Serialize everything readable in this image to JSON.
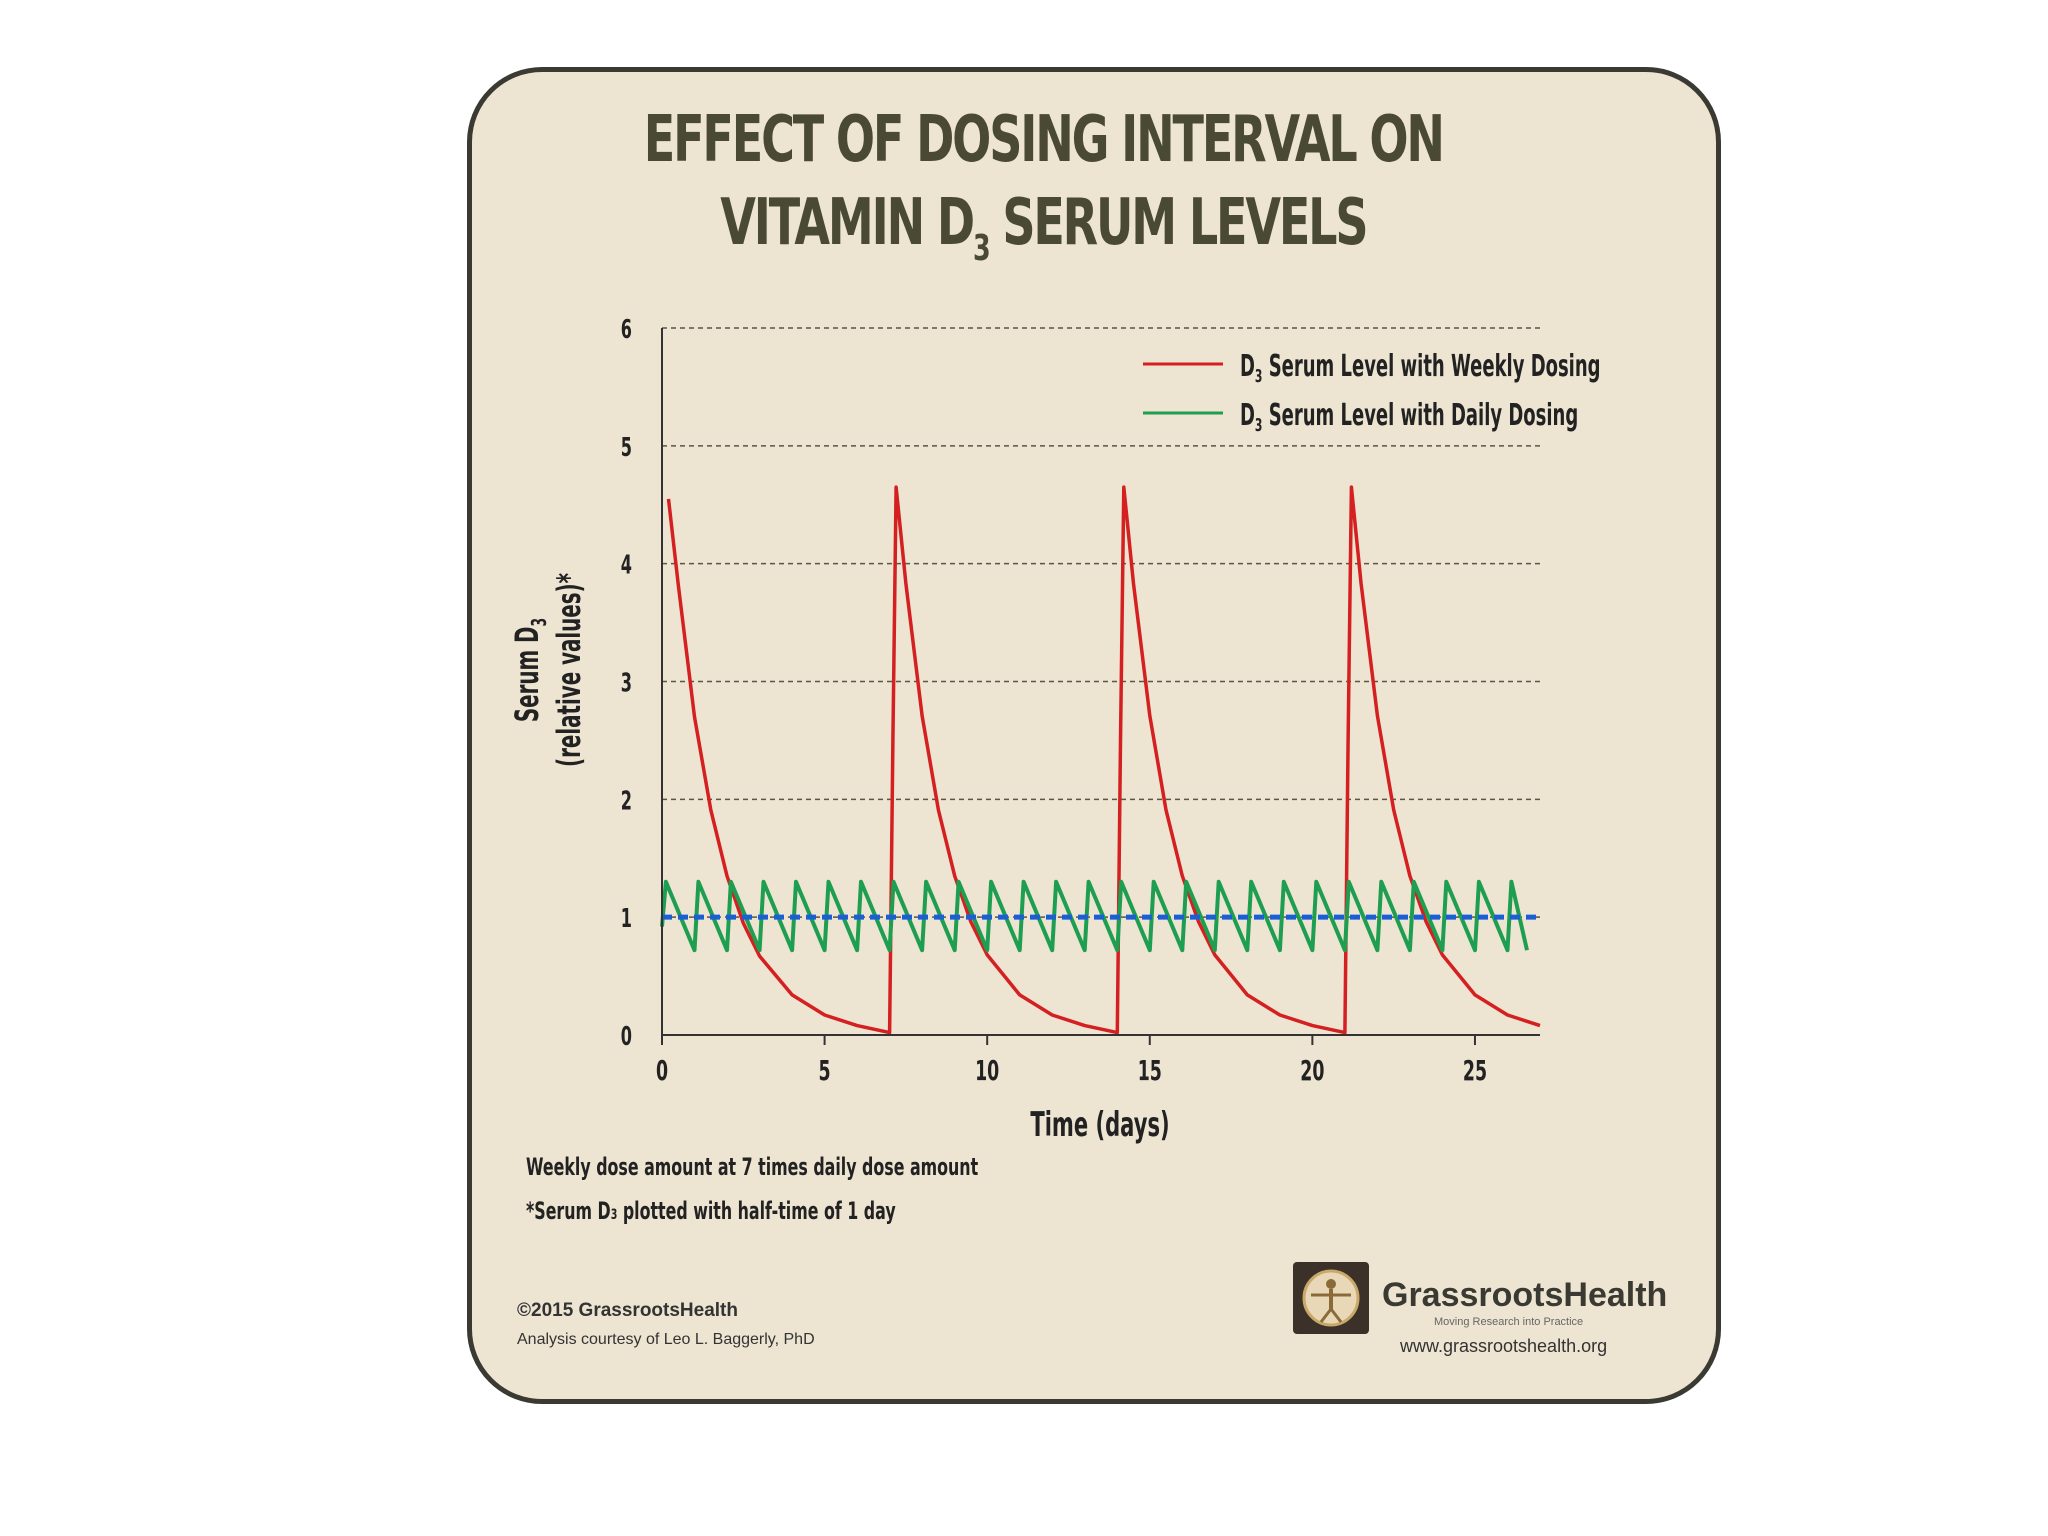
{
  "title": {
    "line1": "EFFECT OF DOSING INTERVAL ON",
    "line2_pre": "VITAMIN D",
    "line2_sub": "3",
    "line2_post": " SERUM LEVELS"
  },
  "notes": {
    "line1": "Weekly dose amount at 7 times daily dose amount",
    "line2_pre": "*Serum D",
    "line2_sub": "3",
    "line2_post": " plotted with half-time of 1 day"
  },
  "credits": {
    "copyright": "©2015 GrassrootsHealth",
    "analysis": "Analysis courtesy of Leo L. Baggerly, PhD"
  },
  "logo": {
    "name": "GrassrootsHealth",
    "tagline": "Moving Research into Practice",
    "url": "www.grassrootshealth.org"
  },
  "colors": {
    "weekly": "#d42020",
    "daily": "#1e9e50",
    "reference": "#1a5fd6",
    "background": "#ede4d2"
  },
  "chart_data": {
    "type": "line",
    "xlabel": "Time (days)",
    "ylabel_line1_pre": "Serum D",
    "ylabel_line1_sub": "3",
    "ylabel_line2": "(relative values)*",
    "xlim": [
      0,
      27
    ],
    "ylim": [
      0,
      6
    ],
    "x_ticks": [
      0,
      5,
      10,
      15,
      20,
      25
    ],
    "y_ticks": [
      0,
      1,
      2,
      3,
      4,
      5,
      6
    ],
    "grid": "horizontal dashed",
    "legend": "top-right",
    "series": [
      {
        "name_pre": "D",
        "name_sub": "3",
        "name_post": " Serum Level with Weekly Dosing",
        "color": "#d42020",
        "x": [
          0.2,
          0.5,
          1,
          1.5,
          2,
          2.5,
          3,
          4,
          5,
          6,
          7,
          7.1,
          7.2,
          7.5,
          8,
          8.5,
          9,
          9.5,
          10,
          11,
          12,
          13,
          14,
          14.1,
          14.2,
          14.5,
          15,
          15.5,
          16,
          16.5,
          17,
          18,
          19,
          20,
          21,
          21.1,
          21.2,
          21.5,
          22,
          22.5,
          23,
          23.5,
          24,
          25,
          26,
          27
        ],
        "y": [
          4.55,
          3.82,
          2.7,
          1.91,
          1.35,
          0.95,
          0.67,
          0.34,
          0.17,
          0.08,
          0.02,
          2.5,
          4.65,
          3.83,
          2.71,
          1.91,
          1.35,
          0.96,
          0.68,
          0.34,
          0.17,
          0.08,
          0.02,
          2.5,
          4.65,
          3.83,
          2.71,
          1.91,
          1.35,
          0.96,
          0.68,
          0.34,
          0.17,
          0.08,
          0.02,
          2.5,
          4.65,
          3.83,
          2.71,
          1.91,
          1.35,
          0.96,
          0.68,
          0.34,
          0.17,
          0.08
        ]
      },
      {
        "name_pre": "D",
        "name_sub": "3",
        "name_post": " Serum Level with Daily Dosing",
        "color": "#1e9e50",
        "peak": 1.3,
        "trough": 0.72,
        "period_days": 1,
        "x_start": 0,
        "x_end": 26.6
      },
      {
        "name": "",
        "color": "#1a5fd6",
        "style": "dashed",
        "x": [
          0,
          27
        ],
        "y": [
          1,
          1
        ]
      }
    ]
  }
}
